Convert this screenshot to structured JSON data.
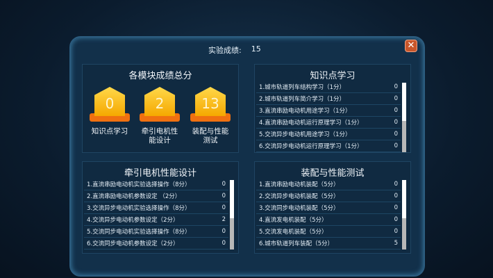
{
  "header": {
    "label": "实验成绩:",
    "score": "15"
  },
  "close_icon": "close-icon",
  "summary": {
    "title": "各模块成绩总分",
    "badges": [
      {
        "value": "0",
        "label": "知识点学习"
      },
      {
        "value": "2",
        "label": "牵引电机性能设计"
      },
      {
        "value": "13",
        "label": "装配与性能测试"
      }
    ]
  },
  "panels": [
    {
      "title": "知识点学习",
      "rows": [
        {
          "label": "1.城市轨道列车结构学习（1分）",
          "score": "0"
        },
        {
          "label": "2.城市轨道列车简介学习（1分）",
          "score": "0"
        },
        {
          "label": "3.直流串励电动机用途学习（1分）",
          "score": "0"
        },
        {
          "label": "4.直流串励电动机运行原理学习（1分）",
          "score": "0"
        },
        {
          "label": "5.交流异步电动机用途学习（1分）",
          "score": "0"
        },
        {
          "label": "6.交流异步电动机运行原理学习（1分）",
          "score": "0"
        }
      ]
    },
    {
      "title": "牵引电机性能设计",
      "rows": [
        {
          "label": "1.直流串励电动机实验选择操作（8分）",
          "score": "0"
        },
        {
          "label": "2.直流串励电动机参数设定 （2分）",
          "score": "0"
        },
        {
          "label": "3.交流异步电动机实验选择操作（8分）",
          "score": "0"
        },
        {
          "label": "4.交流异步电动机参数设定（2分）",
          "score": "2"
        },
        {
          "label": "5.交流同步电动机实验选择操作（8分）",
          "score": "0"
        },
        {
          "label": "6.交流同步电动机参数设定（2分）",
          "score": "0"
        }
      ]
    },
    {
      "title": "装配与性能测试",
      "rows": [
        {
          "label": "1.直流串励电动机装配（5分）",
          "score": "0"
        },
        {
          "label": "2.交流异步电动机装配（5分）",
          "score": "0"
        },
        {
          "label": "3.交流同步电动机装配（5分）",
          "score": "0"
        },
        {
          "label": "4.直流发电机装配（5分）",
          "score": "0"
        },
        {
          "label": "5.交流发电机装配（5分）",
          "score": "0"
        },
        {
          "label": "6.城市轨道列车装配（5分）",
          "score": "5"
        }
      ]
    }
  ]
}
